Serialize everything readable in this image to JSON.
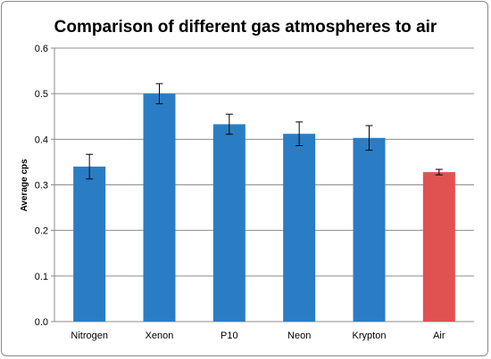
{
  "chart_data": {
    "type": "bar",
    "title": "Comparison of different gas atmospheres to air",
    "xlabel": "",
    "ylabel": "Average cps",
    "ylim": [
      0,
      0.6
    ],
    "yticks": [
      "0.0",
      "0.1",
      "0.2",
      "0.3",
      "0.4",
      "0.5",
      "0.6"
    ],
    "grid": true,
    "legend": "none",
    "categories": [
      "Nitrogen",
      "Xenon",
      "P10",
      "Neon",
      "Krypton",
      "Air"
    ],
    "values": [
      0.34,
      0.5,
      0.433,
      0.412,
      0.403,
      0.328
    ],
    "error": [
      0.027,
      0.022,
      0.022,
      0.026,
      0.027,
      0.006
    ],
    "colors": [
      "#2a7dc4",
      "#2a7dc4",
      "#2a7dc4",
      "#2a7dc4",
      "#2a7dc4",
      "#e05252"
    ]
  }
}
